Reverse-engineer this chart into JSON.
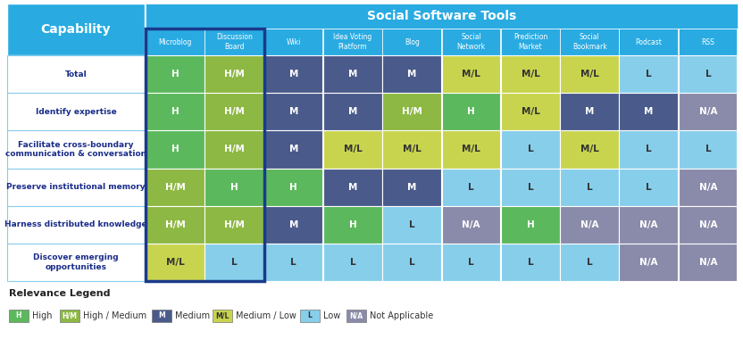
{
  "title": "Social Software Tools",
  "capability_label": "Capability",
  "col_headers": [
    "Microblog",
    "Discussion\nBoard",
    "Wiki",
    "Idea Voting\nPlatform",
    "Blog",
    "Social\nNetwork",
    "Prediction\nMarket",
    "Social\nBookmark",
    "Podcast",
    "RSS"
  ],
  "row_headers": [
    "Total",
    "Identify expertise",
    "Facilitate cross-boundary\ncommunication & conversation",
    "Preserve institutional memory",
    "Harness distributed knowledge",
    "Discover emerging\nopportunities"
  ],
  "cells": [
    [
      "H",
      "H/M",
      "M",
      "M",
      "M",
      "M/L",
      "M/L",
      "M/L",
      "L",
      "L"
    ],
    [
      "H",
      "H/M",
      "M",
      "M",
      "H/M",
      "H",
      "M/L",
      "M",
      "M",
      "N/A"
    ],
    [
      "H",
      "H/M",
      "M",
      "M/L",
      "M/L",
      "M/L",
      "L",
      "M/L",
      "L",
      "L"
    ],
    [
      "H/M",
      "H",
      "H",
      "M",
      "M",
      "L",
      "L",
      "L",
      "L",
      "N/A"
    ],
    [
      "H/M",
      "H/M",
      "M",
      "H",
      "L",
      "N/A",
      "H",
      "N/A",
      "N/A",
      "N/A"
    ],
    [
      "M/L",
      "L",
      "L",
      "L",
      "L",
      "L",
      "L",
      "L",
      "N/A",
      "N/A"
    ]
  ],
  "color_map": {
    "H": "#5cb85c",
    "H/M": "#8db843",
    "M": "#4a5a8a",
    "M/L": "#c8d44e",
    "L": "#87ceeb",
    "N/A": "#8a8aaa"
  },
  "text_color_map": {
    "H": "#ffffff",
    "H/M": "#ffffff",
    "M": "#ffffff",
    "M/L": "#333333",
    "L": "#333333",
    "N/A": "#ffffff"
  },
  "header_bg": "#29abe2",
  "header_text": "#ffffff",
  "capability_bg": "#29abe2",
  "capability_text": "#ffffff",
  "row_label_text": "#1a2d8a",
  "title_bg": "#29abe2",
  "title_text": "#ffffff",
  "border_highlight_color": "#1a3a8a",
  "divider_color": "#87ceeb",
  "legend_items": [
    {
      "label": "H",
      "text": "High",
      "color": "#5cb85c",
      "text_color": "#ffffff"
    },
    {
      "label": "H/M",
      "text": "High / Medium",
      "color": "#8db843",
      "text_color": "#ffffff"
    },
    {
      "label": "M",
      "text": "Medium",
      "color": "#4a5a8a",
      "text_color": "#ffffff"
    },
    {
      "label": "M/L",
      "text": "Medium / Low",
      "color": "#c8d44e",
      "text_color": "#333333"
    },
    {
      "label": "L",
      "text": "Low",
      "color": "#87ceeb",
      "text_color": "#333333"
    },
    {
      "label": "N/A",
      "text": "Not Applicable",
      "color": "#8a8aaa",
      "text_color": "#ffffff"
    }
  ]
}
